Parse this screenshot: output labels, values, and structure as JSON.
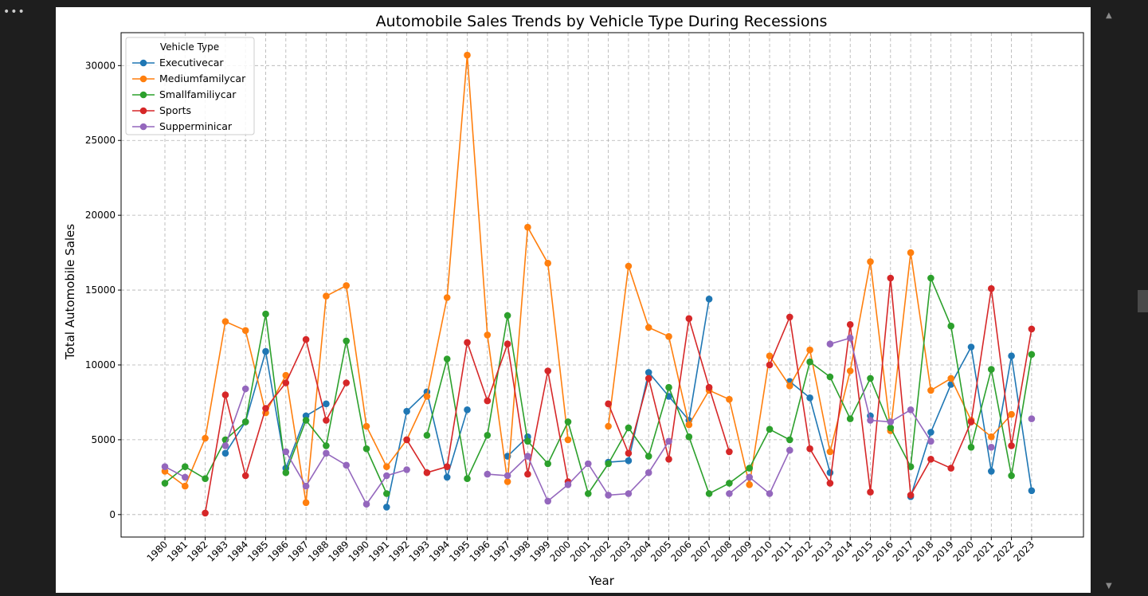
{
  "window": {
    "menu_glyph": "•••",
    "scroll_up_glyph": "▲",
    "scroll_down_glyph": "▼"
  },
  "chart_data": {
    "type": "line",
    "title": "Automobile Sales Trends by Vehicle Type During Recessions",
    "xlabel": "Year",
    "ylabel": "Total Automobile Sales",
    "ylim": [
      -1500,
      32200
    ],
    "yticks": [
      0,
      5000,
      10000,
      15000,
      20000,
      25000,
      30000
    ],
    "grid": true,
    "legend": {
      "title": "Vehicle Type",
      "placement": "top-left"
    },
    "categories": [
      "1980",
      "1981",
      "1982",
      "1983",
      "1984",
      "1985",
      "1986",
      "1987",
      "1988",
      "1989",
      "1990",
      "1991",
      "1992",
      "1993",
      "1994",
      "1995",
      "1996",
      "1997",
      "1998",
      "1999",
      "2000",
      "2001",
      "2002",
      "2003",
      "2004",
      "2005",
      "2006",
      "2007",
      "2008",
      "2009",
      "2010",
      "2011",
      "2012",
      "2013",
      "2014",
      "2015",
      "2016",
      "2017",
      "2018",
      "2019",
      "2020",
      "2021",
      "2022",
      "2023"
    ],
    "series": [
      {
        "name": "Executivecar",
        "color": "#1f77b4",
        "values": [
          null,
          null,
          null,
          4100,
          6200,
          10900,
          3100,
          6600,
          7400,
          null,
          null,
          500,
          6900,
          8200,
          2500,
          7000,
          null,
          3900,
          5200,
          null,
          null,
          null,
          3500,
          3600,
          9500,
          7900,
          6300,
          14400,
          null,
          null,
          null,
          8900,
          7800,
          2800,
          null,
          6600,
          null,
          1200,
          5500,
          8700,
          11200,
          2900,
          10600,
          1600
        ]
      },
      {
        "name": "Mediumfamilycar",
        "color": "#ff7f0e",
        "values": [
          2900,
          1900,
          5100,
          12900,
          12300,
          6800,
          9300,
          800,
          14600,
          15300,
          5900,
          3200,
          5000,
          7900,
          14500,
          30700,
          12000,
          2200,
          19200,
          16800,
          5000,
          null,
          5900,
          16600,
          12500,
          11900,
          6000,
          8300,
          7700,
          2000,
          10600,
          8600,
          11000,
          4200,
          9600,
          16900,
          5600,
          17500,
          8300,
          9100,
          6300,
          5200,
          6700,
          null
        ]
      },
      {
        "name": "Smallfamiliycar",
        "color": "#2ca02c",
        "values": [
          2100,
          3200,
          2400,
          5000,
          6200,
          13400,
          2800,
          6300,
          4600,
          11600,
          4400,
          1400,
          null,
          5300,
          10400,
          2400,
          5300,
          13300,
          4900,
          3400,
          6200,
          1400,
          3400,
          5800,
          3900,
          8500,
          5200,
          1400,
          2100,
          3100,
          5700,
          5000,
          10200,
          9200,
          6400,
          9100,
          5800,
          3200,
          15800,
          12600,
          4500,
          9700,
          2600,
          10700
        ]
      },
      {
        "name": "Sports",
        "color": "#d62728",
        "values": [
          null,
          null,
          100,
          8000,
          2600,
          7100,
          8800,
          11700,
          6300,
          8800,
          null,
          null,
          5000,
          2800,
          3200,
          11500,
          7600,
          11400,
          2700,
          9600,
          2200,
          null,
          7400,
          4100,
          9100,
          3700,
          13100,
          8500,
          4200,
          null,
          10000,
          13200,
          4400,
          2100,
          12700,
          1500,
          15800,
          1300,
          3700,
          3100,
          6200,
          15100,
          4600,
          12400
        ]
      },
      {
        "name": "Supperminicar",
        "color": "#9467bd",
        "values": [
          3200,
          2500,
          null,
          4600,
          8400,
          null,
          4200,
          1900,
          4100,
          3300,
          700,
          2600,
          3000,
          null,
          null,
          null,
          2700,
          2600,
          3900,
          900,
          2000,
          3400,
          1300,
          1400,
          2800,
          4900,
          null,
          null,
          1400,
          2500,
          1400,
          4300,
          null,
          11400,
          11800,
          6300,
          6200,
          7000,
          4900,
          null,
          null,
          4500,
          null,
          6400
        ]
      }
    ]
  }
}
